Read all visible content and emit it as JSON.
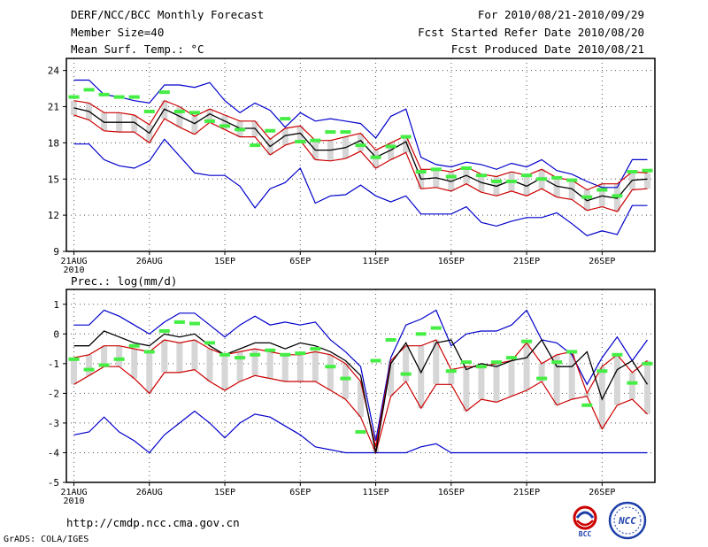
{
  "header": {
    "title": "DERF/NCC/BCC Monthly Forecast",
    "member_size": "Member Size=40",
    "variable": "Mean Surf. Temp.: °C",
    "forecast_range": "For 2010/08/21-2010/09/29",
    "started_date": "Fcst Started Refer Date 2010/08/20",
    "produced_date": "Fcst Produced Date 2010/08/21"
  },
  "footer": {
    "url": "http://cmdp.ncc.cma.gov.cn",
    "credit": "GrADS: COLA/IGES",
    "logo_bcc": "BCC",
    "logo_ncc": "NCC"
  },
  "colors": {
    "envelope": "#0000cc",
    "spread": "#cc0000",
    "mean": "#000000",
    "box": "#d6d6d6",
    "observed": "#44ee44"
  },
  "chart_data": [
    {
      "type": "line",
      "title": "Mean Surf. Temp.: °C",
      "xlabel": "",
      "ylabel": "",
      "ylim": [
        9,
        25
      ],
      "yticks": [
        9,
        12,
        15,
        18,
        21,
        24
      ],
      "xlim": [
        0.5,
        39.5
      ],
      "xticks": [
        {
          "day": 1,
          "label": "21AUG",
          "sublabel": "2010"
        },
        {
          "day": 6,
          "label": "26AUG"
        },
        {
          "day": 11,
          "label": "1SEP"
        },
        {
          "day": 16,
          "label": "6SEP"
        },
        {
          "day": 21,
          "label": "11SEP"
        },
        {
          "day": 26,
          "label": "16SEP"
        },
        {
          "day": 31,
          "label": "21SEP"
        },
        {
          "day": 36,
          "label": "26SEP"
        }
      ],
      "grid": "dotted",
      "days": [
        1,
        2,
        3,
        4,
        5,
        6,
        7,
        8,
        9,
        10,
        11,
        12,
        13,
        14,
        15,
        16,
        17,
        18,
        19,
        20,
        21,
        22,
        23,
        24,
        25,
        26,
        27,
        28,
        29,
        30,
        31,
        32,
        33,
        34,
        35,
        36,
        37,
        38,
        39
      ],
      "series": [
        {
          "name": "max",
          "values": [
            23.2,
            23.2,
            22.0,
            21.8,
            21.5,
            21.3,
            22.8,
            22.8,
            22.6,
            23.0,
            21.5,
            20.5,
            21.3,
            20.7,
            19.3,
            20.5,
            19.8,
            20.0,
            19.8,
            19.6,
            18.4,
            20.2,
            20.8,
            16.8,
            16.2,
            16.0,
            16.4,
            16.2,
            15.8,
            16.3,
            16.0,
            16.6,
            15.7,
            15.4,
            14.8,
            14.3,
            14.3,
            16.6,
            16.6
          ]
        },
        {
          "name": "upper",
          "values": [
            21.5,
            21.3,
            20.5,
            20.5,
            20.3,
            19.5,
            21.5,
            21.0,
            20.2,
            20.8,
            20.3,
            19.8,
            19.8,
            18.3,
            19.2,
            19.4,
            18.2,
            18.2,
            18.5,
            18.8,
            17.4,
            18.0,
            18.6,
            15.8,
            15.8,
            15.6,
            16.0,
            15.4,
            15.2,
            15.6,
            15.3,
            15.8,
            15.1,
            14.9,
            14.1,
            14.6,
            14.6,
            15.6,
            15.5
          ]
        },
        {
          "name": "mean",
          "values": [
            20.9,
            20.6,
            19.7,
            19.7,
            19.7,
            18.8,
            20.8,
            20.2,
            19.6,
            20.4,
            19.8,
            19.2,
            19.2,
            17.7,
            18.6,
            18.8,
            17.4,
            17.4,
            17.6,
            18.2,
            16.8,
            17.4,
            18.1,
            15.0,
            15.1,
            14.8,
            15.3,
            14.7,
            14.4,
            14.9,
            14.4,
            15.1,
            14.4,
            14.2,
            13.2,
            13.6,
            13.4,
            14.9,
            15.0
          ]
        },
        {
          "name": "lower",
          "values": [
            20.3,
            19.9,
            19.0,
            18.9,
            18.9,
            18.0,
            20.0,
            19.3,
            18.7,
            19.7,
            19.1,
            18.5,
            18.5,
            17.0,
            17.8,
            18.2,
            16.6,
            16.5,
            16.7,
            17.3,
            15.9,
            16.6,
            17.2,
            14.2,
            14.3,
            14.0,
            14.6,
            13.9,
            13.6,
            14.0,
            13.6,
            14.2,
            13.5,
            13.3,
            12.4,
            12.7,
            12.3,
            14.1,
            14.2
          ]
        },
        {
          "name": "min",
          "values": [
            17.9,
            17.9,
            16.6,
            16.1,
            15.9,
            16.5,
            18.3,
            16.9,
            15.5,
            15.3,
            15.3,
            14.4,
            12.6,
            14.2,
            14.7,
            15.9,
            13.0,
            13.6,
            13.7,
            14.5,
            13.6,
            13.1,
            13.6,
            12.1,
            12.1,
            12.1,
            12.7,
            11.4,
            11.1,
            11.5,
            11.8,
            11.8,
            12.2,
            11.3,
            10.3,
            10.7,
            10.4,
            12.8,
            12.8
          ]
        },
        {
          "name": "observed",
          "values": [
            21.8,
            22.4,
            22.0,
            21.8,
            21.8,
            20.6,
            22.2,
            20.6,
            20.5,
            19.8,
            19.4,
            19.1,
            17.8,
            19.0,
            20.0,
            18.1,
            18.2,
            18.9,
            18.9,
            17.8,
            16.8,
            17.7,
            18.5,
            15.6,
            15.8,
            15.2,
            15.9,
            15.3,
            14.8,
            14.8,
            15.3,
            15.0,
            15.1,
            14.9,
            13.5,
            14.1,
            13.6,
            15.6,
            15.7
          ]
        }
      ]
    },
    {
      "type": "line",
      "title": "Prec.: log(mm/d)",
      "xlabel": "",
      "ylabel": "",
      "ylim": [
        -5,
        1.5
      ],
      "yticks": [
        -5,
        -4,
        -3,
        -2,
        -1,
        0,
        1
      ],
      "xlim": [
        0.5,
        39.5
      ],
      "xticks": [
        {
          "day": 1,
          "label": "21AUG",
          "sublabel": "2010"
        },
        {
          "day": 6,
          "label": "26AUG"
        },
        {
          "day": 11,
          "label": "1SEP"
        },
        {
          "day": 16,
          "label": "6SEP"
        },
        {
          "day": 21,
          "label": "11SEP"
        },
        {
          "day": 26,
          "label": "16SEP"
        },
        {
          "day": 31,
          "label": "21SEP"
        },
        {
          "day": 36,
          "label": "26SEP"
        }
      ],
      "grid": "dotted",
      "days": [
        1,
        2,
        3,
        4,
        5,
        6,
        7,
        8,
        9,
        10,
        11,
        12,
        13,
        14,
        15,
        16,
        17,
        18,
        19,
        20,
        21,
        22,
        23,
        24,
        25,
        26,
        27,
        28,
        29,
        30,
        31,
        32,
        33,
        34,
        35,
        36,
        37,
        38,
        39
      ],
      "series": [
        {
          "name": "max",
          "values": [
            0.3,
            0.3,
            0.8,
            0.6,
            0.3,
            0.0,
            0.4,
            0.7,
            0.7,
            0.3,
            -0.1,
            0.3,
            0.6,
            0.3,
            0.4,
            0.3,
            0.4,
            -0.2,
            -0.6,
            -1.1,
            -3.6,
            -0.8,
            0.3,
            0.5,
            0.8,
            -0.4,
            0.0,
            0.1,
            0.1,
            0.3,
            0.8,
            -0.2,
            -0.3,
            -0.7,
            -1.7,
            -0.8,
            -0.1,
            -0.9,
            -0.2
          ]
        },
        {
          "name": "upper",
          "values": [
            -0.8,
            -0.7,
            -0.4,
            -0.4,
            -0.5,
            -0.6,
            -0.2,
            -0.3,
            -0.2,
            -0.5,
            -0.7,
            -0.6,
            -0.5,
            -0.6,
            -0.7,
            -0.7,
            -0.6,
            -0.7,
            -1.0,
            -1.6,
            -3.8,
            -0.9,
            -0.4,
            -0.4,
            -0.2,
            -1.2,
            -1.1,
            -1.1,
            -1.0,
            -0.9,
            -0.3,
            -1.0,
            -0.7,
            -0.6,
            -2.0,
            -1.1,
            -0.7,
            -1.3,
            -0.9
          ]
        },
        {
          "name": "mean",
          "values": [
            -0.4,
            -0.4,
            0.1,
            -0.1,
            -0.3,
            -0.4,
            0.0,
            -0.1,
            0.0,
            -0.4,
            -0.7,
            -0.5,
            -0.3,
            -0.3,
            -0.5,
            -0.3,
            -0.4,
            -0.6,
            -0.9,
            -1.4,
            -4.0,
            -1.0,
            -0.3,
            -1.3,
            -0.3,
            -0.2,
            -1.2,
            -1.0,
            -1.1,
            -0.9,
            -0.8,
            -0.2,
            -1.1,
            -1.1,
            -0.6,
            -2.2,
            -1.2,
            -0.9,
            -1.7
          ]
        },
        {
          "name": "lower",
          "values": [
            -1.7,
            -1.4,
            -1.1,
            -1.1,
            -1.5,
            -2.0,
            -1.3,
            -1.3,
            -1.2,
            -1.6,
            -1.9,
            -1.6,
            -1.4,
            -1.5,
            -1.6,
            -1.6,
            -1.6,
            -1.9,
            -2.2,
            -2.8,
            -4.0,
            -2.1,
            -1.6,
            -2.5,
            -1.7,
            -1.7,
            -2.6,
            -2.2,
            -2.3,
            -2.1,
            -1.9,
            -1.6,
            -2.4,
            -2.2,
            -2.1,
            -3.2,
            -2.4,
            -2.2,
            -2.7
          ]
        },
        {
          "name": "min",
          "values": [
            -3.4,
            -3.3,
            -2.8,
            -3.3,
            -3.6,
            -4.0,
            -3.4,
            -3.0,
            -2.6,
            -3.0,
            -3.5,
            -3.0,
            -2.7,
            -2.8,
            -3.1,
            -3.4,
            -3.8,
            -3.9,
            -4.0,
            -4.0,
            -4.0,
            -4.0,
            -4.0,
            -3.8,
            -3.7,
            -4.0,
            -4.0,
            -4.0,
            -4.0,
            -4.0,
            -4.0,
            -4.0,
            -4.0,
            -4.0,
            -4.0,
            -4.0,
            -4.0,
            -4.0,
            -4.0
          ]
        },
        {
          "name": "observed",
          "values": [
            -0.85,
            -1.2,
            -1.05,
            -0.85,
            -0.4,
            -0.6,
            0.1,
            0.4,
            0.35,
            -0.3,
            -0.7,
            -0.8,
            -0.7,
            -0.55,
            -0.7,
            -0.65,
            -0.5,
            -1.1,
            -1.5,
            -3.3,
            -0.9,
            -0.2,
            -1.35,
            0.0,
            0.2,
            -1.25,
            -0.95,
            -1.1,
            -0.95,
            -0.8,
            -0.25,
            -1.5,
            -0.95,
            -0.6,
            -2.4,
            -1.25,
            -0.7,
            -1.65,
            -1.0
          ]
        }
      ]
    }
  ]
}
